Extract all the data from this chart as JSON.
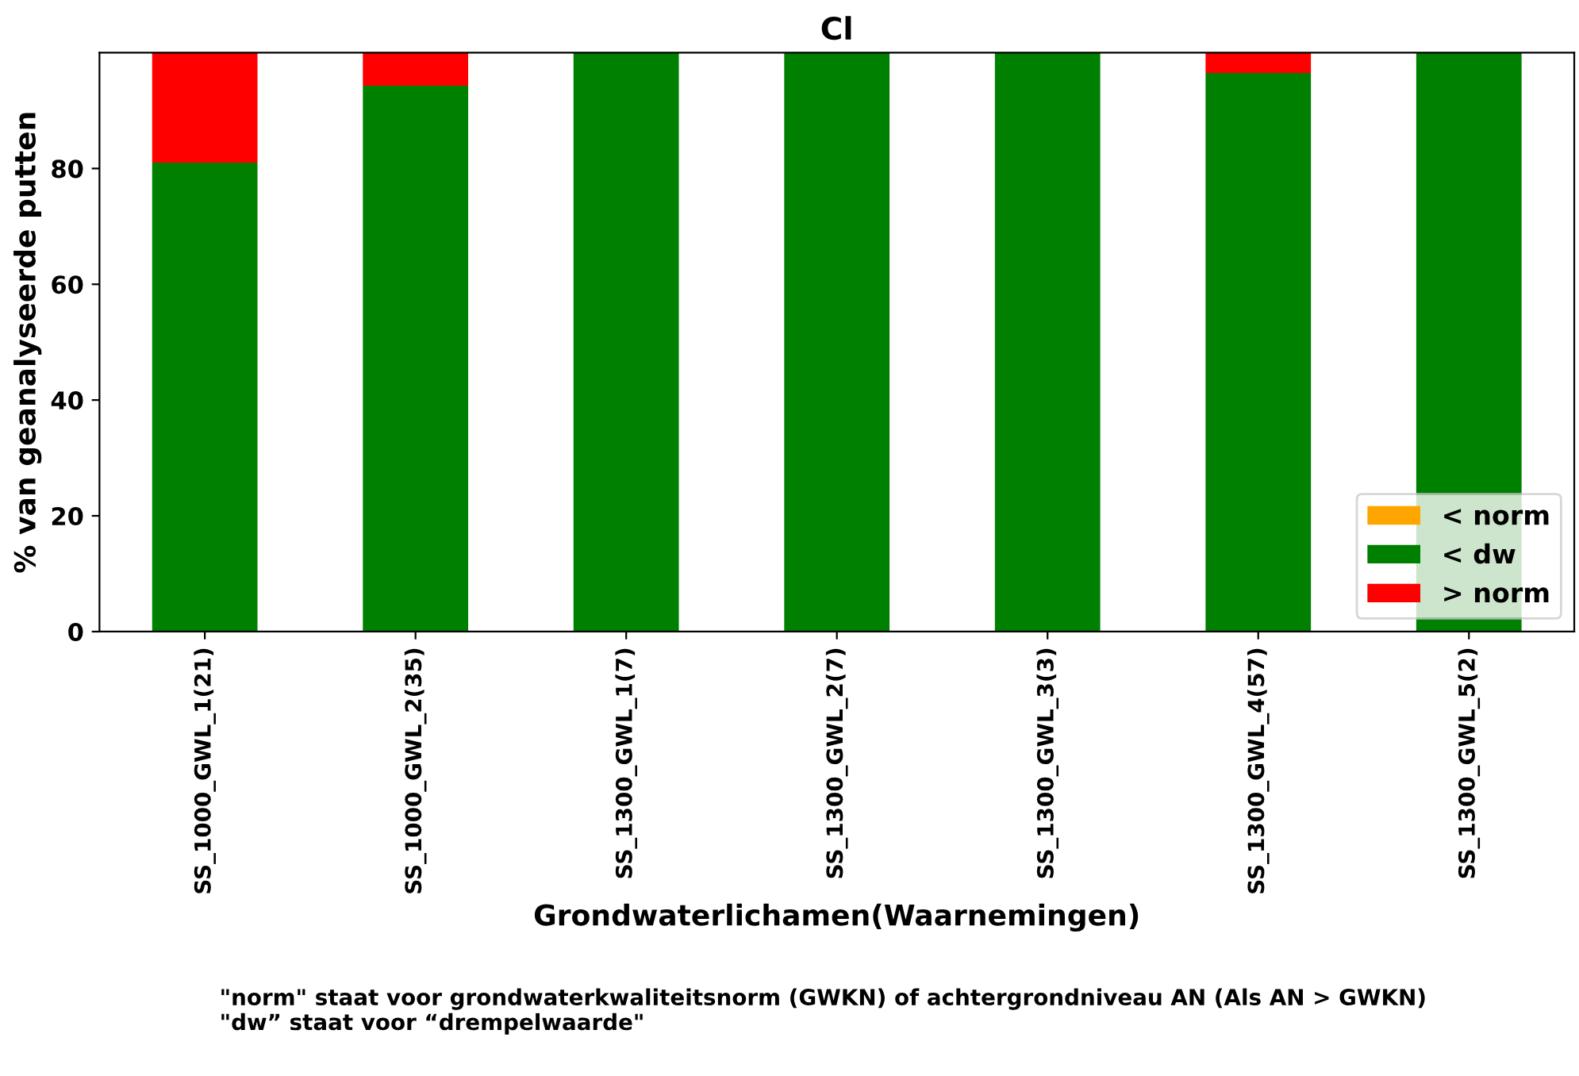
{
  "chart_data": {
    "type": "bar",
    "title": "Cl",
    "xlabel": "Grondwaterlichamen(Waarnemingen)",
    "ylabel": "% van geanalyseerde putten",
    "categories": [
      "SS_1000_GWL_1(21)",
      "SS_1000_GWL_2(35)",
      "SS_1300_GWL_1(7)",
      "SS_1300_GWL_2(7)",
      "SS_1300_GWL_3(3)",
      "SS_1300_GWL_4(57)",
      "SS_1300_GWL_5(2)"
    ],
    "stacked": true,
    "series": [
      {
        "name": "< norm",
        "color": "#ffa500",
        "values": [
          0,
          0,
          0,
          0,
          0,
          0,
          0
        ]
      },
      {
        "name": "< dw",
        "color": "#008000",
        "values": [
          81,
          94.3,
          100,
          100,
          100,
          96.5,
          100
        ]
      },
      {
        "name": "> norm",
        "color": "#ff0000",
        "values": [
          19,
          5.7,
          0,
          0,
          0,
          3.5,
          0
        ]
      }
    ],
    "ylim": [
      0,
      100
    ],
    "yticks": [
      0,
      20,
      40,
      60,
      80
    ],
    "grid": false,
    "legend": "bottom right",
    "annotations": [
      "\"norm\" staat voor grondwaterkwaliteitsnorm (GWKN) of achtergrondniveau AN (Als AN > GWKN)\n\"dw” staat voor “drempelwaarde\""
    ]
  }
}
